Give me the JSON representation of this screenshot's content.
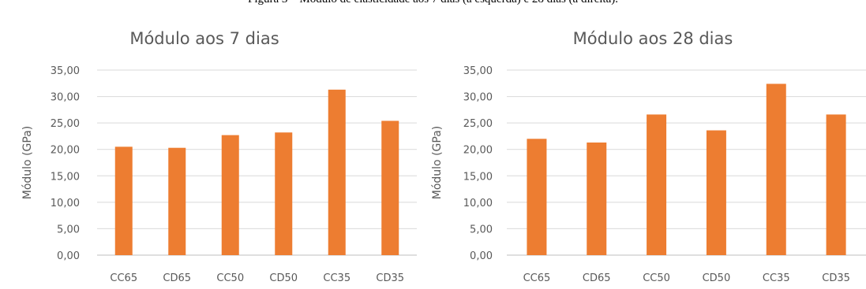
{
  "caption": "Figura 3 – Módulo de elasticidade aos 7 dias (à esquerda) e 28 dias (à direita).",
  "colors": {
    "bar": "#ed7d31",
    "text": "#595959",
    "grid": "#d9d9d9"
  },
  "chart_data": [
    {
      "type": "bar",
      "title": "Módulo aos 7 dias",
      "xlabel": "",
      "ylabel": "Módulo (GPa)",
      "ylim": [
        0,
        35
      ],
      "yticks": [
        "0,00",
        "5,00",
        "10,00",
        "15,00",
        "20,00",
        "25,00",
        "30,00",
        "35,00"
      ],
      "grid": true,
      "legend": "none",
      "categories": [
        "CC65",
        "CD65",
        "CC50",
        "CD50",
        "CC35",
        "CD35"
      ],
      "values": [
        20.5,
        20.3,
        22.7,
        23.2,
        31.3,
        25.4
      ]
    },
    {
      "type": "bar",
      "title": "Módulo aos 28 dias",
      "xlabel": "",
      "ylabel": "Módulo (GPa)",
      "ylim": [
        0,
        35
      ],
      "yticks": [
        "0,00",
        "5,00",
        "10,00",
        "15,00",
        "20,00",
        "25,00",
        "30,00",
        "35,00"
      ],
      "grid": true,
      "legend": "none",
      "categories": [
        "CC65",
        "CD65",
        "CC50",
        "CD50",
        "CC35",
        "CD35"
      ],
      "values": [
        22.0,
        21.3,
        26.6,
        23.6,
        32.4,
        26.6
      ]
    }
  ]
}
